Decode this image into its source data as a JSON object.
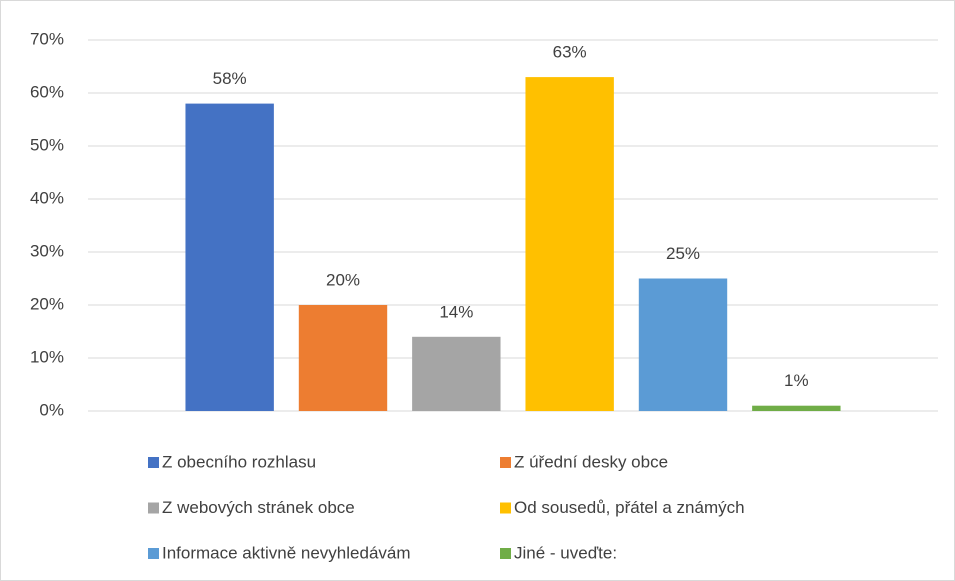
{
  "chart_data": {
    "type": "bar",
    "categories": [
      null
    ],
    "series": [
      {
        "name": "Z obecního rozhlasu",
        "color": "#4472c4",
        "values": [
          58
        ],
        "value_labels": [
          "58%"
        ]
      },
      {
        "name": "Z úřední desky obce",
        "color": "#ed7d31",
        "values": [
          20
        ],
        "value_labels": [
          "20%"
        ]
      },
      {
        "name": "Z webových stránek obce",
        "color": "#a5a5a5",
        "values": [
          14
        ],
        "value_labels": [
          "14%"
        ]
      },
      {
        "name": "Od sousedů, přátel a známých",
        "color": "#ffc000",
        "values": [
          63
        ],
        "value_labels": [
          "63%"
        ]
      },
      {
        "name": "Informace aktivně nevyhledávám",
        "color": "#5b9bd5",
        "values": [
          25
        ],
        "value_labels": [
          "25%"
        ]
      },
      {
        "name": "Jiné - uveďte:",
        "color": "#70ad47",
        "values": [
          1
        ],
        "value_labels": [
          "1%"
        ]
      }
    ],
    "ylim": [
      0,
      70
    ],
    "yticks": [
      {
        "value": 0,
        "label": "0%"
      },
      {
        "value": 10,
        "label": "10%"
      },
      {
        "value": 20,
        "label": "20%"
      },
      {
        "value": 30,
        "label": "30%"
      },
      {
        "value": 40,
        "label": "40%"
      },
      {
        "value": 50,
        "label": "50%"
      },
      {
        "value": 60,
        "label": "60%"
      },
      {
        "value": 70,
        "label": "70%"
      }
    ],
    "grid": true
  }
}
